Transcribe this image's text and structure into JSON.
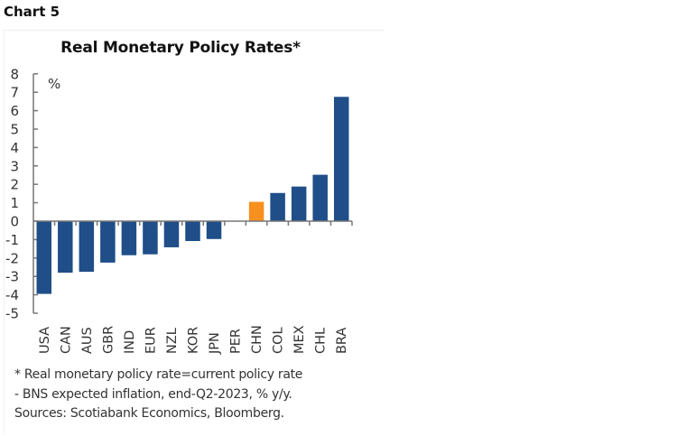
{
  "header": {
    "chart_number": "Chart 5"
  },
  "chart_data": {
    "type": "bar",
    "title": "Real Monetary Policy Rates*",
    "unit_label": "%",
    "xlabel": "",
    "ylabel": "%",
    "ylim": [
      -5,
      8
    ],
    "yticks": [
      8,
      7,
      6,
      5,
      4,
      3,
      2,
      1,
      0,
      -1,
      -2,
      -3,
      -4,
      -5
    ],
    "grid": false,
    "categories": [
      "USA",
      "CAN",
      "AUS",
      "GBR",
      "IND",
      "EUR",
      "NZL",
      "KOR",
      "JPN",
      "PER",
      "CHN",
      "COL",
      "MEX",
      "CHL",
      "BRA"
    ],
    "values": [
      -3.95,
      -2.8,
      -2.75,
      -2.25,
      -1.85,
      -1.8,
      -1.42,
      -1.08,
      -0.97,
      0,
      1.05,
      1.53,
      1.88,
      2.52,
      6.75
    ],
    "highlight": "CHN",
    "colors": {
      "default": "#1f4e89",
      "highlight": "#f7901e",
      "axis": "#777777"
    }
  },
  "footnote": {
    "lines": [
      "* Real monetary policy rate=current policy rate",
      "- BNS expected inflation, end-Q2-2023, % y/y.",
      "Sources: Scotiabank Economics, Bloomberg."
    ]
  }
}
